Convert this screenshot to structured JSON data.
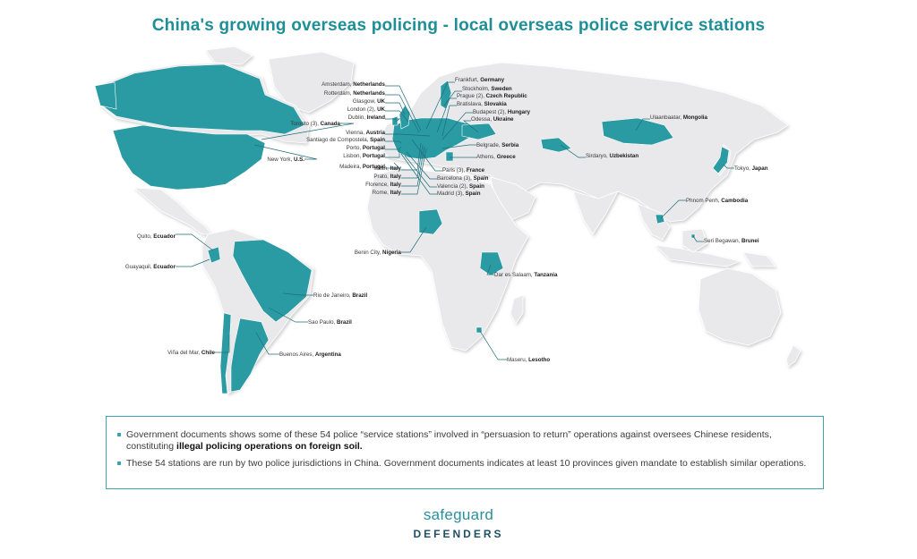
{
  "title": "China's growing overseas policing - local overseas police service stations",
  "colors": {
    "highlight": "#2a9aa3",
    "land": "#e9e9ec",
    "border": "#ffffff",
    "text": "#3a3a3a",
    "brand_light": "#2b8f9b",
    "brand_dark": "#1e4f62"
  },
  "stations": [
    {
      "city": "Amsterdam,",
      "country": "Netherlands"
    },
    {
      "city": "Rotterdam,",
      "country": "Netherlands"
    },
    {
      "city": "Glasgow,",
      "country": "UK"
    },
    {
      "city": "London (2),",
      "country": "UK"
    },
    {
      "city": "Dublin,",
      "country": "Ireland"
    },
    {
      "city": "Toronto (3),",
      "country": "Canada"
    },
    {
      "city": "Vienna,",
      "country": "Austria"
    },
    {
      "city": "Santiago de Compostela,",
      "country": "Spain"
    },
    {
      "city": "Porto,",
      "country": "Portugal"
    },
    {
      "city": "Lisbon,",
      "country": "Portugal"
    },
    {
      "city": "New York,",
      "country": "U.S."
    },
    {
      "city": "Madeira,",
      "country": "Portugal"
    },
    {
      "city": "Milan,",
      "country": "Italy"
    },
    {
      "city": "Prato,",
      "country": "Italy"
    },
    {
      "city": "Florence,",
      "country": "Italy"
    },
    {
      "city": "Rome,",
      "country": "Italy"
    },
    {
      "city": "Frankfurt,",
      "country": "Germany"
    },
    {
      "city": "Stockholm,",
      "country": "Sweden"
    },
    {
      "city": "Prague (2),",
      "country": "Czech Republic"
    },
    {
      "city": "Bratislava,",
      "country": "Slovakia"
    },
    {
      "city": "Budapest (2),",
      "country": "Hungary"
    },
    {
      "city": "Odessa,",
      "country": "Ukraine"
    },
    {
      "city": "Belgrade,",
      "country": "Serbia"
    },
    {
      "city": "Athens,",
      "country": "Greece"
    },
    {
      "city": "Paris (3),",
      "country": "France"
    },
    {
      "city": "Barcelona (3),",
      "country": "Spain"
    },
    {
      "city": "Valencia (2),",
      "country": "Spain"
    },
    {
      "city": "Madrid (3),",
      "country": "Spain"
    },
    {
      "city": "Ulaanbaatar,",
      "country": "Mongolia"
    },
    {
      "city": "Sirdaryo,",
      "country": "Uzbekistan"
    },
    {
      "city": "Tokyo,",
      "country": "Japan"
    },
    {
      "city": "Phnom Penh,",
      "country": "Cambodia"
    },
    {
      "city": "Seri Begawan,",
      "country": "Brunei"
    },
    {
      "city": "Quito,",
      "country": "Ecuador"
    },
    {
      "city": "Guayaquil,",
      "country": "Ecuador"
    },
    {
      "city": "Benin City,",
      "country": "Nigeria"
    },
    {
      "city": "Dar es Salaam,",
      "country": "Tanzania"
    },
    {
      "city": "Rio de Janeiro,",
      "country": "Brazil"
    },
    {
      "city": "Sao Paulo,",
      "country": "Brazil"
    },
    {
      "city": "Viña del Mar,",
      "country": "Chile"
    },
    {
      "city": "Buenos Aires,",
      "country": "Argentina"
    },
    {
      "city": "Maseru,",
      "country": "Lesotho"
    }
  ],
  "notes": [
    {
      "before": "Government documents shows some of these 54 police “service stations” involved in “persuasion to return” operations against oversees Chinese residents, constituting ",
      "bold": "illegal policing operations on foreign soil.",
      "after": ""
    },
    {
      "before": "These 54 stations are run by two police jurisdictions in China. Government documents indicates at least 10 provinces given mandate to establish similar operations.",
      "bold": "",
      "after": ""
    }
  ],
  "logo": {
    "line1": "safeguard",
    "line2": "DEFENDERS"
  }
}
